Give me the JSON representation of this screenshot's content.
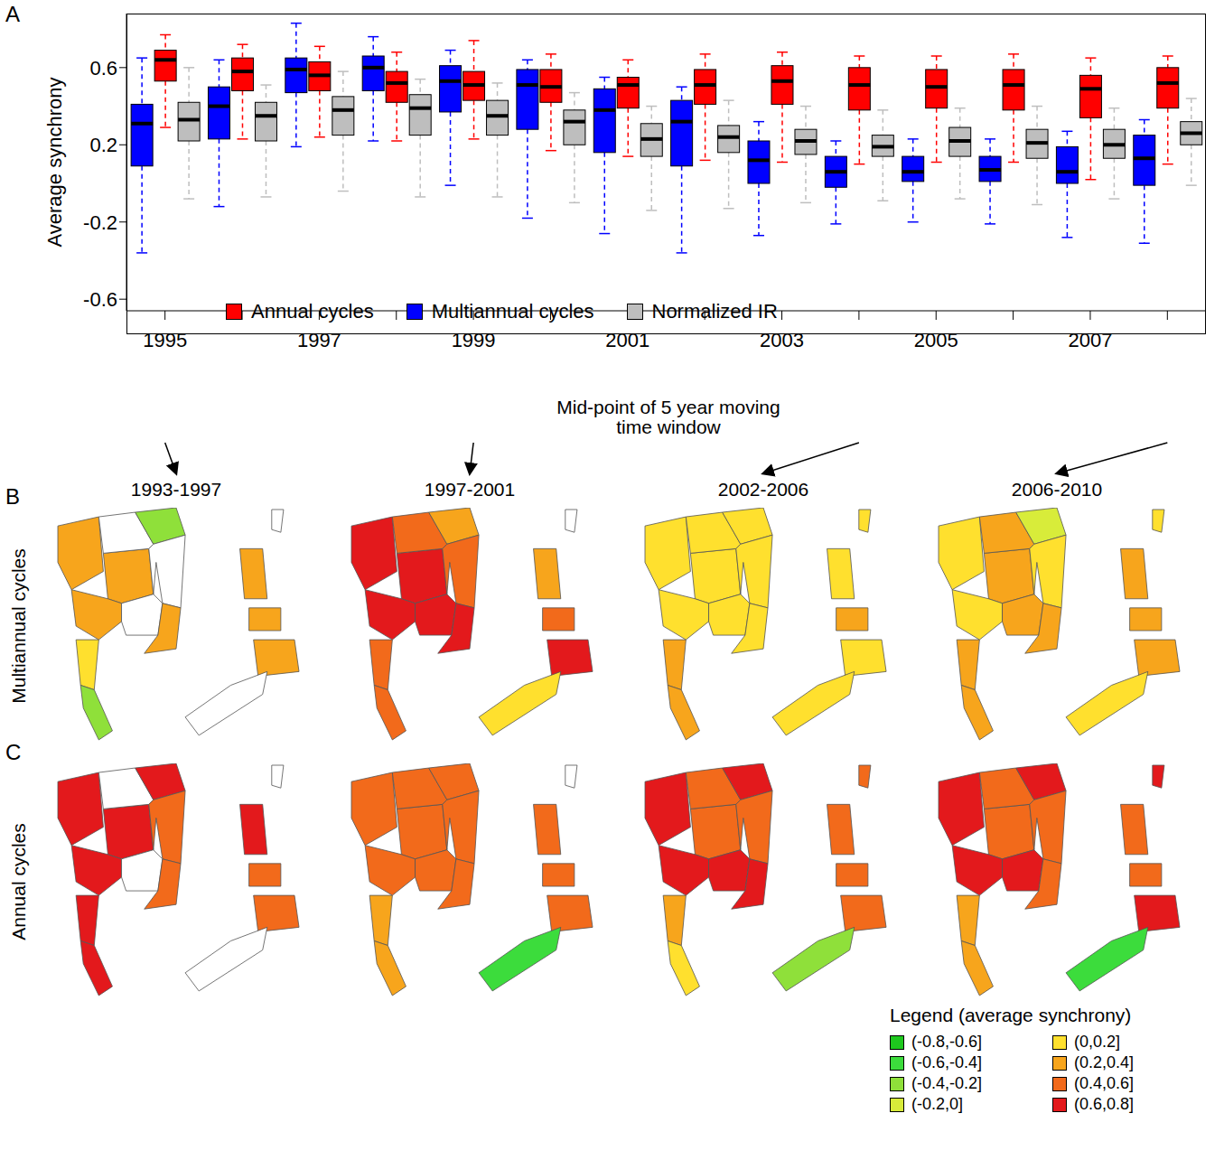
{
  "chart_data": [
    {
      "type": "boxplot",
      "panel": "A",
      "ylabel": "Average synchrony",
      "xlabel": "Mid-point of 5 year moving time window",
      "categories": [
        "1995",
        null,
        "1997",
        null,
        "1999",
        null,
        "2001",
        null,
        "2003",
        null,
        "2005",
        null,
        "2007",
        null
      ],
      "ylim": [
        -0.66,
        0.88
      ],
      "yticks": [
        -0.6,
        -0.2,
        0.2,
        0.6
      ],
      "legend": "bottom",
      "series": [
        {
          "name": "Annual cycles",
          "color": "#ff0000",
          "values": [
            [
              0.29,
              0.53,
              0.64,
              0.69,
              0.77
            ],
            [
              0.23,
              0.48,
              0.58,
              0.65,
              0.72
            ],
            [
              0.24,
              0.48,
              0.56,
              0.63,
              0.71
            ],
            [
              0.22,
              0.42,
              0.52,
              0.58,
              0.68
            ],
            [
              0.23,
              0.43,
              0.51,
              0.58,
              0.74
            ],
            [
              0.17,
              0.42,
              0.5,
              0.59,
              0.67
            ],
            [
              0.14,
              0.39,
              0.51,
              0.55,
              0.64
            ],
            [
              0.12,
              0.41,
              0.51,
              0.59,
              0.67
            ],
            [
              0.11,
              0.41,
              0.53,
              0.61,
              0.68
            ],
            [
              0.1,
              0.38,
              0.51,
              0.6,
              0.66
            ],
            [
              0.11,
              0.39,
              0.5,
              0.59,
              0.66
            ],
            [
              0.11,
              0.38,
              0.51,
              0.59,
              0.67
            ],
            [
              0.02,
              0.34,
              0.49,
              0.56,
              0.65
            ],
            [
              0.1,
              0.39,
              0.52,
              0.6,
              0.66
            ]
          ]
        },
        {
          "name": "Multiannual cycles",
          "color": "#0000ff",
          "values": [
            [
              -0.36,
              0.09,
              0.31,
              0.41,
              0.65
            ],
            [
              -0.12,
              0.23,
              0.4,
              0.5,
              0.64
            ],
            [
              0.19,
              0.47,
              0.59,
              0.65,
              0.83
            ],
            [
              0.22,
              0.48,
              0.6,
              0.66,
              0.76
            ],
            [
              -0.01,
              0.37,
              0.53,
              0.61,
              0.69
            ],
            [
              -0.18,
              0.28,
              0.51,
              0.59,
              0.64
            ],
            [
              -0.26,
              0.16,
              0.38,
              0.49,
              0.55
            ],
            [
              -0.36,
              0.09,
              0.32,
              0.43,
              0.5
            ],
            [
              -0.27,
              0.0,
              0.12,
              0.22,
              0.32
            ],
            [
              -0.21,
              -0.02,
              0.06,
              0.14,
              0.22
            ],
            [
              -0.2,
              0.01,
              0.06,
              0.14,
              0.23
            ],
            [
              -0.21,
              0.01,
              0.07,
              0.14,
              0.23
            ],
            [
              -0.28,
              0.0,
              0.06,
              0.19,
              0.27
            ],
            [
              -0.31,
              -0.01,
              0.13,
              0.25,
              0.33
            ]
          ]
        },
        {
          "name": "Normalized IR",
          "color": "#bebebe",
          "values": [
            [
              -0.08,
              0.22,
              0.33,
              0.42,
              0.6
            ],
            [
              -0.07,
              0.22,
              0.35,
              0.42,
              0.51
            ],
            [
              -0.04,
              0.25,
              0.38,
              0.45,
              0.58
            ],
            [
              -0.07,
              0.25,
              0.39,
              0.46,
              0.54
            ],
            [
              -0.07,
              0.25,
              0.35,
              0.43,
              0.52
            ],
            [
              -0.1,
              0.2,
              0.32,
              0.38,
              0.47
            ],
            [
              -0.14,
              0.14,
              0.23,
              0.31,
              0.4
            ],
            [
              -0.13,
              0.16,
              0.24,
              0.3,
              0.43
            ],
            [
              -0.1,
              0.15,
              0.22,
              0.28,
              0.4
            ],
            [
              -0.09,
              0.14,
              0.19,
              0.25,
              0.38
            ],
            [
              -0.08,
              0.14,
              0.22,
              0.29,
              0.39
            ],
            [
              -0.11,
              0.13,
              0.21,
              0.28,
              0.4
            ],
            [
              -0.08,
              0.13,
              0.2,
              0.28,
              0.39
            ],
            [
              -0.01,
              0.2,
              0.26,
              0.32,
              0.44
            ]
          ]
        }
      ]
    },
    {
      "type": "choropleth",
      "windows": [
        "1993-1997",
        "1997-2001",
        "2002-2006",
        "2006-2010"
      ],
      "legend_title": "Legend (average synchrony)",
      "classes": [
        {
          "label": "(-0.8,-0.6]",
          "color": "#1ec81e"
        },
        {
          "label": "(-0.6,-0.4]",
          "color": "#3cdc3c"
        },
        {
          "label": "(-0.4,-0.2]",
          "color": "#8fe03a"
        },
        {
          "label": "(-0.2,0]",
          "color": "#d8ec3a"
        },
        {
          "label": "(0,0.2]",
          "color": "#ffe02e"
        },
        {
          "label": "(0.2,0.4]",
          "color": "#f7a51c"
        },
        {
          "label": "(0.4,0.6]",
          "color": "#f26a1b"
        },
        {
          "label": "(0.6,0.8]",
          "color": "#e3191c"
        }
      ],
      "rows": [
        {
          "label": "B",
          "title": "Multiannual cycles",
          "maps": [
            [
              "(0.2,0.4]",
              "(0.2,0.4]",
              "(0.2,0.4]",
              "(0,0.2]",
              "(-0.4,-0.2]",
              null,
              "(-0.4,-0.2]",
              null,
              null,
              "(0.2,0.4]",
              null,
              "(0.2,0.4]",
              "(0.2,0.4]",
              "(0.2,0.4]",
              null
            ],
            [
              "(0.6,0.8]",
              "(0.6,0.8]",
              "(0.6,0.8]",
              "(0.4,0.6]",
              "(0.4,0.6]",
              "(0.4,0.6]",
              "(0.2,0.4]",
              "(0.4,0.6]",
              "(0.6,0.8]",
              "(0.6,0.8]",
              null,
              "(0.2,0.4]",
              "(0.4,0.6]",
              "(0.6,0.8]",
              "(0,0.2]"
            ],
            [
              "(0,0.2]",
              "(0,0.2]",
              "(0,0.2]",
              "(0.2,0.4]",
              "(0.2,0.4]",
              "(0,0.2]",
              "(0,0.2]",
              "(0,0.2]",
              "(0,0.2]",
              "(0,0.2]",
              "(0,0.2]",
              "(0,0.2]",
              "(0.2,0.4]",
              "(0,0.2]",
              "(0,0.2]"
            ],
            [
              "(0,0.2]",
              "(0.2,0.4]",
              "(0,0.2]",
              "(0.2,0.4]",
              "(0.2,0.4]",
              "(0.2,0.4]",
              "(-0.2,0]",
              "(0,0.2]",
              "(0.2,0.4]",
              "(0.2,0.4]",
              "(0,0.2]",
              "(0.2,0.4]",
              "(0.2,0.4]",
              "(0.2,0.4]",
              "(0,0.2]"
            ]
          ]
        },
        {
          "label": "C",
          "title": "Annual cycles",
          "maps": [
            [
              "(0.6,0.8]",
              "(0.6,0.8]",
              "(0.6,0.8]",
              "(0.6,0.8]",
              "(0.6,0.8]",
              null,
              "(0.6,0.8]",
              "(0.4,0.6]",
              null,
              "(0.4,0.6]",
              null,
              "(0.6,0.8]",
              "(0.4,0.6]",
              "(0.4,0.6]",
              null
            ],
            [
              "(0.4,0.6]",
              "(0.4,0.6]",
              "(0.4,0.6]",
              "(0.2,0.4]",
              "(0.2,0.4]",
              "(0.4,0.6]",
              "(0.4,0.6]",
              "(0.4,0.6]",
              "(0.4,0.6]",
              "(0.4,0.6]",
              null,
              "(0.4,0.6]",
              "(0.4,0.6]",
              "(0.4,0.6]",
              "(-0.6,-0.4]"
            ],
            [
              "(0.6,0.8]",
              "(0.4,0.6]",
              "(0.6,0.8]",
              "(0.2,0.4]",
              "(0,0.2]",
              "(0.4,0.6]",
              "(0.6,0.8]",
              "(0.4,0.6]",
              "(0.6,0.8]",
              "(0.6,0.8]",
              "(0.4,0.6]",
              "(0.4,0.6]",
              "(0.4,0.6]",
              "(0.4,0.6]",
              "(-0.4,-0.2]"
            ],
            [
              "(0.6,0.8]",
              "(0.4,0.6]",
              "(0.6,0.8]",
              "(0.2,0.4]",
              "(0.2,0.4]",
              "(0.4,0.6]",
              "(0.6,0.8]",
              "(0.4,0.6]",
              "(0.6,0.8]",
              "(0.4,0.6]",
              "(0.6,0.8]",
              "(0.4,0.6]",
              "(0.4,0.6]",
              "(0.6,0.8]",
              "(-0.6,-0.4]"
            ]
          ]
        }
      ]
    }
  ]
}
